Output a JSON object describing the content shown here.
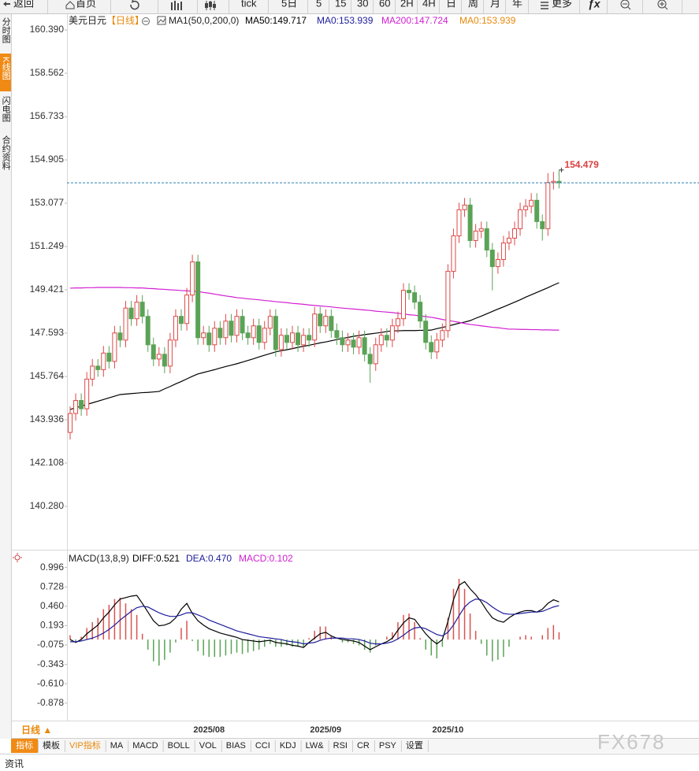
{
  "toolbar": [
    "返回",
    "首页",
    "tick",
    "5日",
    "5",
    "15",
    "30",
    "60",
    "2H",
    "4H",
    "日",
    "周",
    "月",
    "年",
    "更多"
  ],
  "sidebar": [
    "分时图",
    "K线图",
    "闪电图",
    "合约资料"
  ],
  "chart_data": [
    {
      "type": "candlestick",
      "title": "美元日元",
      "period": "【日线】",
      "indicator": "MA1(50,0,200,0)",
      "categories": [
        null,
        null,
        null,
        null,
        null,
        null,
        null,
        null,
        null,
        null,
        null,
        null,
        null,
        null,
        null,
        null,
        null,
        null,
        null,
        null,
        null,
        null,
        null,
        null,
        null,
        "2025/08",
        null,
        null,
        null,
        null,
        null,
        null,
        null,
        null,
        null,
        null,
        null,
        null,
        null,
        null,
        null,
        null,
        null,
        null,
        null,
        null,
        "2025/09",
        null,
        null,
        null,
        null,
        null,
        null,
        null,
        null,
        null,
        null,
        null,
        null,
        null,
        null,
        null,
        null,
        null,
        null,
        null,
        null,
        null,
        "2025/10",
        null,
        null,
        null,
        null,
        null,
        null,
        null,
        null,
        null,
        null,
        null,
        null,
        null,
        null,
        null,
        null,
        null,
        null,
        null,
        null
      ],
      "open": [
        143.4,
        144.2,
        144.75,
        144.4,
        145.65,
        146.2,
        146.05,
        146.75,
        146.4,
        147.6,
        147.3,
        148.65,
        148.2,
        148.9,
        148.3,
        147.1,
        146.5,
        146.7,
        146.2,
        147.3,
        148.3,
        148.0,
        149.2,
        150.6,
        147.4,
        147.6,
        147.1,
        147.8,
        147.4,
        148.1,
        147.5,
        148.3,
        147.6,
        147.4,
        147.9,
        147.2,
        147.8,
        148.3,
        146.9,
        147.5,
        147.2,
        147.6,
        147.1,
        147.5,
        147.3,
        148.4,
        147.9,
        148.3,
        147.7,
        147.4,
        147.1,
        147.3,
        147.0,
        147.4,
        146.7,
        146.3,
        147.1,
        147.5,
        147.3,
        147.9,
        148.2,
        149.4,
        149.3,
        148.9,
        148.1,
        147.2,
        146.8,
        147.3,
        147.7,
        150.2,
        151.7,
        152.8,
        153.0,
        151.5,
        151.9,
        152.0,
        151.1,
        150.4,
        150.7,
        151.4,
        151.6,
        152.0,
        152.8,
        152.95,
        153.2,
        152.3,
        152.0,
        153.95,
        154.0
      ],
      "high": [
        144.5,
        145.05,
        145.05,
        145.95,
        146.5,
        146.5,
        147.05,
        147.05,
        147.9,
        147.9,
        148.95,
        148.95,
        149.2,
        149.2,
        148.6,
        147.4,
        147.0,
        147.0,
        147.6,
        148.6,
        148.6,
        149.5,
        150.9,
        150.9,
        147.9,
        147.9,
        148.1,
        148.1,
        148.4,
        148.4,
        148.6,
        148.6,
        147.9,
        148.2,
        148.2,
        148.1,
        148.6,
        148.6,
        147.8,
        147.8,
        147.9,
        147.9,
        147.8,
        147.8,
        148.7,
        148.7,
        148.6,
        148.6,
        148.0,
        147.7,
        147.6,
        147.6,
        147.7,
        147.7,
        147.0,
        147.4,
        147.8,
        147.8,
        148.2,
        148.5,
        149.7,
        149.7,
        149.6,
        149.2,
        148.4,
        147.5,
        147.6,
        148.0,
        150.5,
        152.0,
        153.1,
        153.3,
        153.3,
        152.2,
        152.3,
        152.3,
        151.4,
        151.0,
        151.7,
        151.9,
        152.3,
        153.1,
        153.25,
        153.5,
        153.5,
        152.6,
        154.35,
        154.4,
        154.479
      ],
      "low": [
        143.1,
        143.9,
        144.1,
        144.1,
        145.35,
        145.75,
        145.75,
        146.1,
        146.1,
        147.0,
        147.0,
        147.9,
        147.9,
        148.0,
        146.8,
        146.2,
        146.2,
        145.9,
        145.9,
        147.0,
        147.7,
        147.7,
        148.9,
        147.1,
        147.1,
        146.8,
        146.8,
        147.1,
        147.1,
        147.2,
        147.2,
        147.3,
        147.1,
        147.1,
        146.9,
        146.9,
        147.5,
        146.6,
        146.6,
        146.9,
        146.9,
        146.8,
        146.8,
        147.0,
        147.0,
        147.6,
        147.6,
        147.4,
        147.1,
        146.8,
        146.8,
        146.7,
        146.7,
        146.4,
        145.5,
        146.0,
        146.8,
        147.0,
        147.0,
        147.6,
        147.9,
        149.0,
        148.6,
        147.8,
        146.9,
        146.5,
        146.5,
        147.0,
        147.4,
        149.9,
        151.4,
        152.5,
        151.2,
        151.2,
        151.6,
        150.8,
        149.4,
        150.1,
        150.4,
        151.1,
        151.3,
        151.7,
        152.5,
        152.65,
        152.0,
        151.5,
        151.7,
        153.65,
        153.7
      ],
      "close": [
        144.2,
        144.75,
        144.4,
        145.65,
        146.2,
        146.05,
        146.75,
        146.4,
        147.6,
        147.3,
        148.65,
        148.2,
        148.9,
        148.3,
        147.1,
        146.5,
        146.7,
        146.2,
        147.3,
        148.3,
        148.0,
        149.2,
        150.6,
        147.4,
        147.6,
        147.1,
        147.8,
        147.4,
        148.1,
        147.5,
        148.3,
        147.6,
        147.4,
        147.9,
        147.2,
        147.8,
        148.3,
        146.9,
        147.5,
        147.2,
        147.6,
        147.1,
        147.5,
        147.3,
        148.4,
        147.9,
        148.3,
        147.7,
        147.4,
        147.1,
        147.3,
        147.0,
        147.4,
        146.7,
        146.3,
        147.1,
        147.5,
        147.3,
        147.9,
        148.2,
        149.4,
        149.3,
        148.9,
        148.1,
        147.2,
        146.8,
        147.3,
        147.7,
        150.2,
        151.7,
        152.8,
        153.0,
        151.5,
        151.9,
        152.0,
        151.1,
        150.4,
        150.7,
        151.4,
        151.6,
        152.0,
        152.8,
        152.95,
        153.2,
        152.3,
        152.0,
        153.95,
        154.0,
        153.94
      ],
      "up_color": "#e04848",
      "down_color": "#5aa356",
      "last_line_color": "#2e7fb0",
      "series": [
        {
          "name": "MA50:149.717",
          "color": "#000000",
          "values": [
            144.37,
            144.44,
            144.51,
            144.58,
            144.65,
            144.72,
            144.79,
            144.86,
            144.93,
            145.0,
            145.02,
            145.04,
            145.06,
            145.08,
            145.09,
            145.11,
            145.13,
            145.24,
            145.34,
            145.45,
            145.55,
            145.66,
            145.77,
            145.87,
            145.93,
            145.99,
            146.05,
            146.12,
            146.18,
            146.24,
            146.3,
            146.37,
            146.44,
            146.51,
            146.59,
            146.66,
            146.73,
            146.8,
            146.85,
            146.89,
            146.94,
            146.99,
            147.04,
            147.08,
            147.13,
            147.18,
            147.22,
            147.27,
            147.32,
            147.37,
            147.41,
            147.46,
            147.49,
            147.53,
            147.56,
            147.59,
            147.62,
            147.66,
            147.69,
            147.69,
            147.7,
            147.7,
            147.7,
            147.71,
            147.71,
            147.72,
            147.78,
            147.83,
            147.89,
            147.95,
            148.01,
            148.06,
            148.12,
            148.22,
            148.31,
            148.41,
            148.51,
            148.61,
            148.7,
            148.8,
            148.9,
            149.0,
            149.11,
            149.21,
            149.31,
            149.41,
            149.51,
            149.62,
            149.72
          ]
        },
        {
          "name": "MA0:153.939",
          "color": "#1c1c9c"
        },
        {
          "name": "MA200:147.724",
          "color": "#d21ed2",
          "values": [
            149.49,
            149.5,
            149.5,
            149.51,
            149.51,
            149.52,
            149.52,
            149.52,
            149.52,
            149.52,
            149.51,
            149.51,
            149.5,
            149.5,
            149.48,
            149.47,
            149.45,
            149.44,
            149.42,
            149.41,
            149.39,
            149.38,
            149.36,
            149.35,
            149.31,
            149.28,
            149.24,
            149.2,
            149.16,
            149.13,
            149.09,
            149.07,
            149.04,
            149.02,
            149.0,
            148.97,
            148.95,
            148.92,
            148.9,
            148.88,
            148.85,
            148.83,
            148.81,
            148.78,
            148.76,
            148.74,
            148.72,
            148.7,
            148.67,
            148.65,
            148.63,
            148.61,
            148.59,
            148.57,
            148.55,
            148.52,
            148.5,
            148.48,
            148.46,
            148.43,
            148.4,
            148.37,
            148.35,
            148.32,
            148.29,
            148.26,
            148.22,
            148.17,
            148.13,
            148.09,
            148.05,
            148.0,
            147.96,
            147.93,
            147.9,
            147.87,
            147.84,
            147.82,
            147.79,
            147.76,
            147.76,
            147.75,
            147.75,
            147.74,
            147.74,
            147.73,
            147.73,
            147.72,
            147.72
          ]
        },
        {
          "name": "MA0:153.939",
          "color": "#e8890c"
        }
      ],
      "ylim": [
        138.45,
        160.99
      ],
      "yticks": [
        {
          "value": 160.39,
          "label": "160.390"
        },
        158.562,
        156.733,
        154.905,
        153.077,
        151.249,
        149.421,
        147.593,
        145.764,
        143.936,
        142.108,
        {
          "value": 140.28,
          "label": "140.280"
        }
      ],
      "grid": false
    },
    {
      "type": "macd",
      "title": "MACD(13,8,9)",
      "up_color": "#d9534f",
      "down_color": "#5aa356",
      "series": [
        {
          "name": "DIFF:0.521",
          "color": "#000000",
          "values": [
            0.0,
            -0.04,
            0.0,
            0.08,
            0.14,
            0.2,
            0.3,
            0.38,
            0.48,
            0.56,
            0.58,
            0.6,
            0.61,
            0.5,
            0.38,
            0.26,
            0.19,
            0.2,
            0.23,
            0.3,
            0.42,
            0.5,
            0.36,
            0.26,
            0.2,
            0.15,
            0.12,
            0.09,
            0.07,
            0.05,
            0.03,
            0.0,
            -0.01,
            -0.02,
            -0.03,
            -0.02,
            -0.01,
            -0.04,
            -0.05,
            -0.06,
            -0.08,
            -0.09,
            -0.11,
            -0.04,
            0.02,
            0.08,
            0.1,
            0.05,
            0.02,
            0.0,
            -0.01,
            -0.02,
            -0.04,
            -0.09,
            -0.14,
            -0.1,
            -0.06,
            -0.03,
            0.02,
            0.13,
            0.23,
            0.3,
            0.28,
            0.18,
            0.08,
            0.0,
            -0.06,
            0.0,
            0.25,
            0.55,
            0.75,
            0.8,
            0.7,
            0.62,
            0.52,
            0.4,
            0.3,
            0.26,
            0.24,
            0.3,
            0.35,
            0.38,
            0.4,
            0.4,
            0.38,
            0.42,
            0.5,
            0.55,
            0.521
          ]
        },
        {
          "name": "DEA:0.470",
          "color": "#1c1c9c",
          "values": [
            -0.03,
            -0.03,
            -0.02,
            0.0,
            0.02,
            0.05,
            0.09,
            0.14,
            0.2,
            0.27,
            0.33,
            0.39,
            0.44,
            0.46,
            0.45,
            0.41,
            0.37,
            0.34,
            0.32,
            0.32,
            0.34,
            0.37,
            0.37,
            0.34,
            0.31,
            0.27,
            0.24,
            0.21,
            0.18,
            0.15,
            0.12,
            0.1,
            0.08,
            0.06,
            0.04,
            0.03,
            0.02,
            0.01,
            0.0,
            -0.02,
            -0.03,
            -0.04,
            -0.06,
            -0.05,
            -0.04,
            -0.01,
            0.01,
            0.02,
            0.02,
            0.02,
            0.01,
            0.01,
            0.0,
            -0.02,
            -0.05,
            -0.06,
            -0.06,
            -0.05,
            -0.03,
            0.01,
            0.06,
            0.12,
            0.16,
            0.17,
            0.15,
            0.11,
            0.07,
            0.05,
            0.1,
            0.2,
            0.33,
            0.45,
            0.52,
            0.56,
            0.55,
            0.51,
            0.45,
            0.4,
            0.36,
            0.35,
            0.35,
            0.36,
            0.37,
            0.38,
            0.38,
            0.39,
            0.42,
            0.45,
            0.47
          ]
        },
        {
          "name": "MACD:0.102",
          "color": "#d21ed2",
          "style": "bars",
          "values": [
            0.06,
            -0.02,
            0.04,
            0.16,
            0.24,
            0.3,
            0.42,
            0.48,
            0.56,
            0.58,
            0.5,
            0.42,
            0.34,
            0.08,
            -0.14,
            -0.3,
            -0.36,
            -0.28,
            -0.18,
            -0.04,
            0.16,
            0.26,
            -0.02,
            -0.16,
            -0.22,
            -0.24,
            -0.24,
            -0.24,
            -0.22,
            -0.2,
            -0.18,
            -0.2,
            -0.18,
            -0.16,
            -0.14,
            -0.1,
            -0.06,
            -0.1,
            -0.1,
            -0.08,
            -0.1,
            -0.1,
            -0.1,
            0.02,
            0.12,
            0.18,
            0.18,
            0.06,
            0.0,
            -0.04,
            -0.04,
            -0.06,
            -0.08,
            -0.14,
            -0.18,
            -0.08,
            0.0,
            0.04,
            0.1,
            0.24,
            0.34,
            0.36,
            0.24,
            0.02,
            -0.14,
            -0.22,
            -0.26,
            -0.1,
            0.3,
            0.7,
            0.84,
            0.7,
            0.36,
            0.12,
            -0.06,
            -0.22,
            -0.3,
            -0.28,
            -0.24,
            -0.1,
            0.0,
            0.04,
            0.06,
            0.04,
            0.0,
            0.06,
            0.16,
            0.2,
            0.102
          ]
        }
      ],
      "ylim": [
        -1.12,
        1.22
      ],
      "yticks": [
        0.996,
        0.728,
        {
          "value": 0.46,
          "label": "0.460"
        },
        0.193,
        -0.075,
        -0.343,
        {
          "value": -0.61,
          "label": "-0.610"
        },
        -0.878
      ]
    }
  ],
  "period_selector": "日线 ▲",
  "tabs": [
    "指标",
    "模板",
    "VIP指标",
    "MA",
    "MACD",
    "BOLL",
    "VOL",
    "BIAS",
    "CCI",
    "KDJ",
    "LW&",
    "RSI",
    "CR",
    "PSY",
    "设置"
  ],
  "footer": "资讯",
  "watermark": "FX678"
}
